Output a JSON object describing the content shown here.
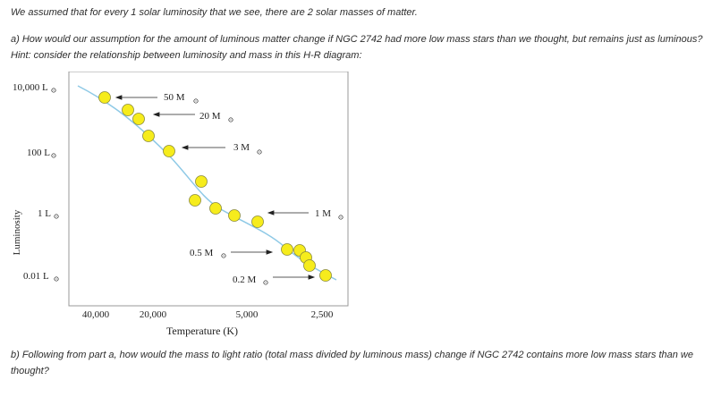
{
  "intro": "We assumed that for every 1 solar luminosity that we see, there are 2 solar masses of matter.",
  "question_a": "a) How would our assumption for the amount of luminous matter change if NGC 2742 had more low mass stars than we thought, but remains just as luminous? Hint: consider the relationship between luminosity and mass in this H-R diagram:",
  "question_b": "b) Following from part a, how would the mass to light ratio (total mass divided by luminous mass) change if NGC 2742 contains more low mass stars than we thought?",
  "hr_diagram": {
    "y_axis_label": "Luminosity",
    "x_axis_label": "Temperature (K)",
    "y_ticks": [
      {
        "value": "10,000",
        "unit": "L"
      },
      {
        "value": "100",
        "unit": "L"
      },
      {
        "value": "1",
        "unit": "L"
      },
      {
        "value": "0.01",
        "unit": "L"
      }
    ],
    "x_ticks": [
      "40,000",
      "20,000",
      "5,000",
      "2,500"
    ],
    "mass_labels": [
      {
        "value": "50",
        "unit": "M"
      },
      {
        "value": "20",
        "unit": "M"
      },
      {
        "value": "3",
        "unit": "M"
      },
      {
        "value": "1",
        "unit": "M"
      },
      {
        "value": "0.5",
        "unit": "M"
      },
      {
        "value": "0.2",
        "unit": "M"
      }
    ],
    "colors": {
      "main_sequence": "#8ec9e6",
      "star_fill": "#f6ec1c",
      "star_stroke": "#8a8a3a",
      "frame": "#999999"
    }
  }
}
